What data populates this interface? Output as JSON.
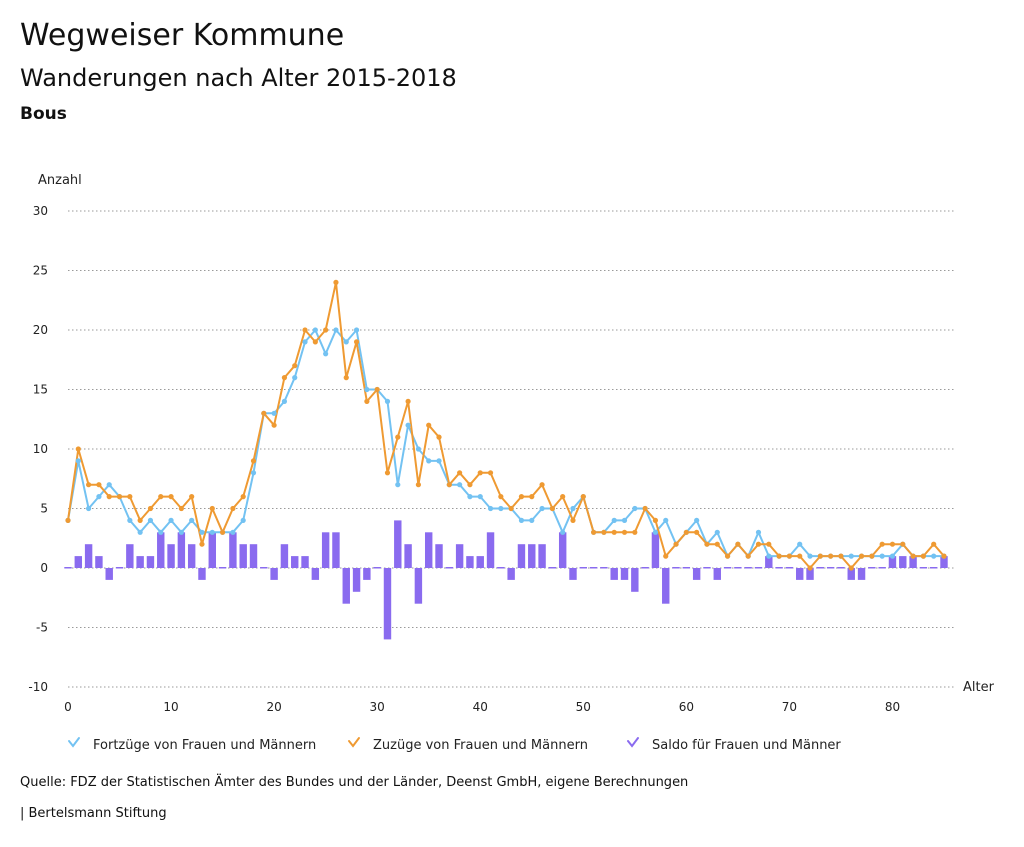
{
  "header": {
    "title": "Wegweiser Kommune",
    "subtitle": "Wanderungen nach Alter 2015-2018",
    "region": "Bous"
  },
  "footer": {
    "source": "Quelle: FDZ der Statistischen Ämter des Bundes und der Länder, Deenst GmbH, eigene Berechnungen",
    "publisher": "| Bertelsmann Stiftung"
  },
  "chart_data": {
    "type": "line",
    "title": "Wanderungen nach Alter 2015-2018",
    "xlabel": "Alter",
    "ylabel": "Anzahl",
    "xlim": [
      0,
      85
    ],
    "ylim": [
      -10,
      30
    ],
    "x_ticks": [
      0,
      10,
      20,
      30,
      40,
      50,
      60,
      70,
      80
    ],
    "y_ticks": [
      -10,
      -5,
      0,
      5,
      10,
      15,
      20,
      25,
      30
    ],
    "x": [
      0,
      1,
      2,
      3,
      4,
      5,
      6,
      7,
      8,
      9,
      10,
      11,
      12,
      13,
      14,
      15,
      16,
      17,
      18,
      19,
      20,
      21,
      22,
      23,
      24,
      25,
      26,
      27,
      28,
      29,
      30,
      31,
      32,
      33,
      34,
      35,
      36,
      37,
      38,
      39,
      40,
      41,
      42,
      43,
      44,
      45,
      46,
      47,
      48,
      49,
      50,
      51,
      52,
      53,
      54,
      55,
      56,
      57,
      58,
      59,
      60,
      61,
      62,
      63,
      64,
      65,
      66,
      67,
      68,
      69,
      70,
      71,
      72,
      73,
      74,
      75,
      76,
      77,
      78,
      79,
      80,
      81,
      82,
      83,
      84,
      85
    ],
    "series": [
      {
        "name": "Fortzüge von Frauen und Männern",
        "type": "line",
        "color": "#73c2f2",
        "values": [
          4,
          9,
          5,
          6,
          7,
          6,
          4,
          3,
          4,
          3,
          4,
          3,
          4,
          3,
          3,
          3,
          3,
          4,
          8,
          13,
          13,
          14,
          16,
          19,
          20,
          18,
          20,
          19,
          20,
          15,
          15,
          14,
          7,
          12,
          10,
          9,
          9,
          7,
          7,
          6,
          6,
          5,
          5,
          5,
          4,
          4,
          5,
          5,
          3,
          5,
          6,
          3,
          3,
          4,
          4,
          5,
          5,
          3,
          4,
          2,
          3,
          4,
          2,
          3,
          1,
          2,
          1,
          3,
          1,
          1,
          1,
          2,
          1,
          1,
          1,
          1,
          1,
          1,
          1,
          1,
          1,
          2,
          1,
          1,
          1,
          1
        ]
      },
      {
        "name": "Zuzüge von Frauen und Männern",
        "type": "line",
        "color": "#ef9a32",
        "values": [
          4,
          10,
          7,
          7,
          6,
          6,
          6,
          4,
          5,
          6,
          6,
          5,
          6,
          2,
          5,
          3,
          5,
          6,
          9,
          13,
          12,
          16,
          17,
          20,
          19,
          20,
          24,
          16,
          19,
          14,
          15,
          8,
          11,
          14,
          7,
          12,
          11,
          7,
          8,
          7,
          8,
          8,
          6,
          5,
          6,
          6,
          7,
          5,
          6,
          4,
          6,
          3,
          3,
          3,
          3,
          3,
          5,
          4,
          1,
          2,
          3,
          3,
          2,
          2,
          1,
          2,
          1,
          2,
          2,
          1,
          1,
          1,
          0,
          1,
          1,
          1,
          0,
          1,
          1,
          2,
          2,
          2,
          1,
          1,
          2,
          1
        ]
      },
      {
        "name": "Saldo für Frauen und Männer",
        "type": "bar",
        "color": "#8a6bef",
        "values": [
          0,
          1,
          2,
          1,
          -1,
          0,
          2,
          1,
          1,
          3,
          2,
          3,
          2,
          -1,
          3,
          0,
          3,
          2,
          2,
          0,
          -1,
          2,
          1,
          1,
          -1,
          3,
          3,
          -3,
          -2,
          -1,
          0,
          -6,
          4,
          2,
          -3,
          3,
          2,
          0,
          2,
          1,
          1,
          3,
          0,
          -1,
          2,
          2,
          2,
          0,
          3,
          -1,
          0,
          0,
          0,
          -1,
          -1,
          -2,
          0,
          3,
          -3,
          0,
          0,
          -1,
          0,
          -1,
          0,
          0,
          0,
          0,
          1,
          0,
          0,
          -1,
          -1,
          0,
          0,
          0,
          -1,
          -1,
          0,
          0,
          1,
          1,
          1,
          0,
          0,
          1
        ]
      }
    ],
    "legend": [
      "Fortzüge von Frauen und Männern",
      "Zuzüge von Frauen und Männern",
      "Saldo für Frauen und Männer"
    ],
    "grid": true
  }
}
